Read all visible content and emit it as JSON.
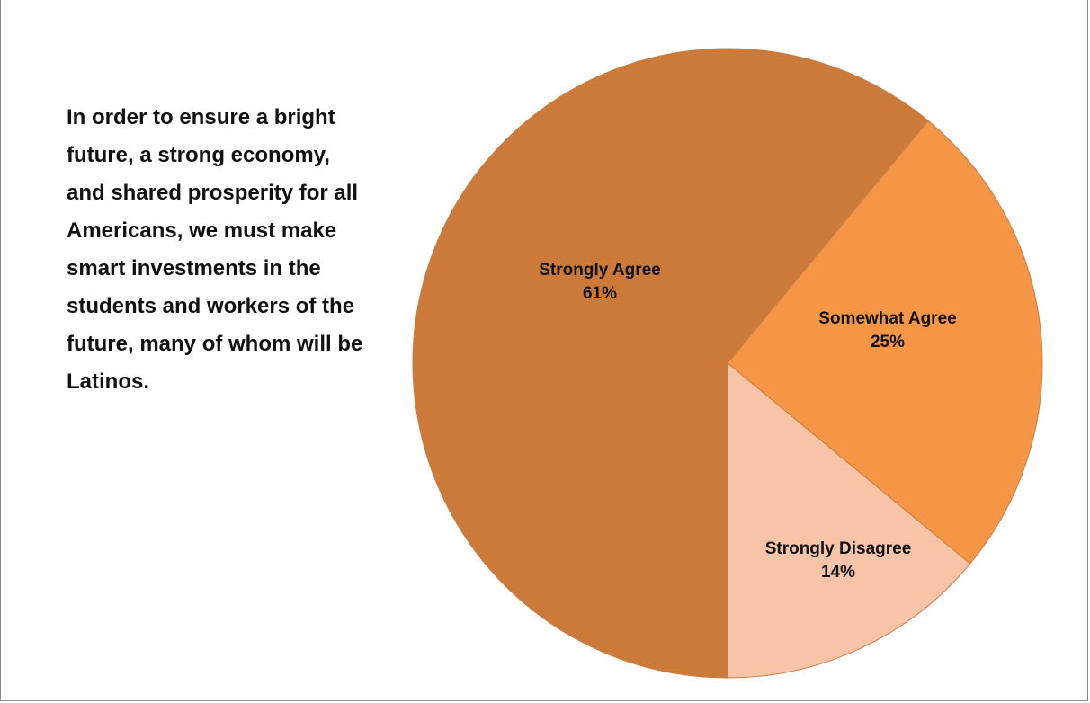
{
  "statement": "In order to ensure a bright future, a strong economy, and shared prosperity for all Americans, we must make smart investments in the students and workers of the future, many of whom will be Latinos.",
  "chart_data": {
    "type": "pie",
    "title": "",
    "categories": [
      "Strongly Agree",
      "Somewhat Agree",
      "Strongly Disagree"
    ],
    "values": [
      61,
      25,
      14
    ],
    "value_labels": [
      "61%",
      "25%",
      "14%"
    ],
    "colors": [
      "#cb7a3a",
      "#f59647",
      "#f8c4a7"
    ],
    "start": "bottom-center",
    "direction": "clockwise",
    "legend": "none"
  }
}
